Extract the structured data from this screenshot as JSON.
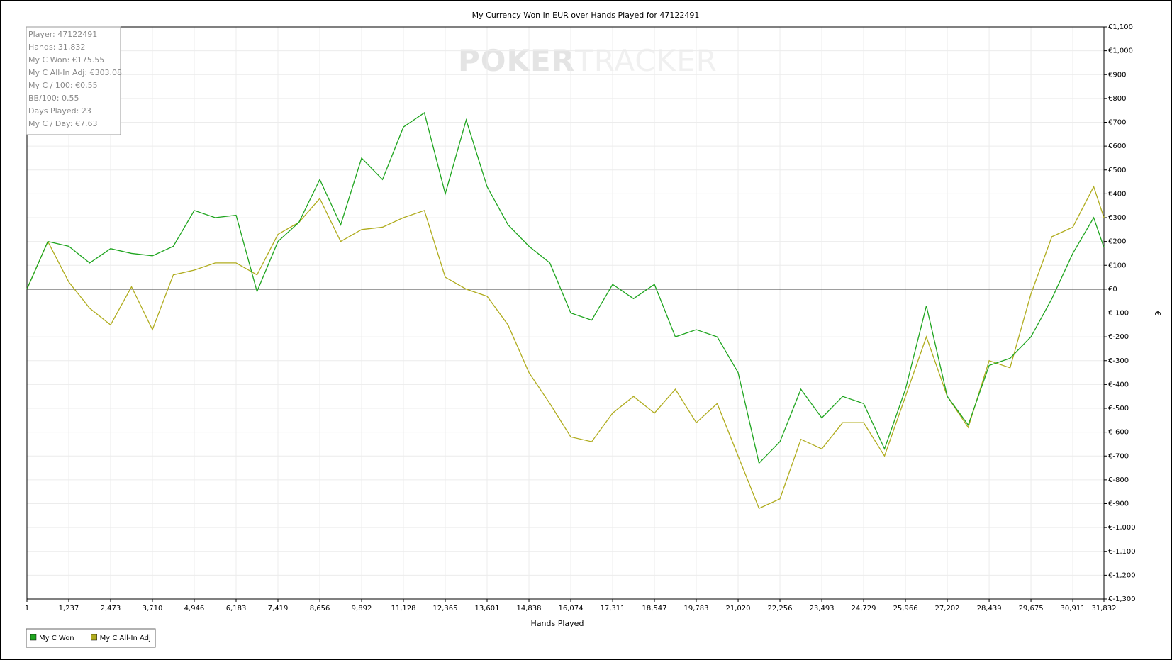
{
  "chart_data": {
    "type": "line",
    "title": "My Currency Won in EUR over Hands Played for 47122491",
    "x_label": "Hands Played",
    "y_label": "€",
    "watermark": {
      "left": "POKER",
      "right": "TRACKER"
    },
    "stats": [
      "Player: 47122491",
      "Hands: 31,832",
      "My C Won: €175.55",
      "My C All-In Adj: €303.08",
      "My C / 100: €0.55",
      "BB/100: 0.55",
      "Days Played: 23",
      "My C / Day: €7.63"
    ],
    "x": [
      1,
      619,
      1237,
      1855,
      2473,
      3092,
      3710,
      4328,
      4946,
      5565,
      6183,
      6801,
      7419,
      8038,
      8656,
      9274,
      9892,
      10510,
      11128,
      11747,
      12365,
      12983,
      13601,
      14220,
      14838,
      15456,
      16074,
      16693,
      17311,
      17929,
      18547,
      19165,
      19783,
      20402,
      21020,
      21638,
      22256,
      22875,
      23493,
      24111,
      24729,
      25347,
      25966,
      26584,
      27202,
      27820,
      28439,
      29057,
      29675,
      30293,
      30911,
      31529,
      31832
    ],
    "series": [
      {
        "name": "My C Won",
        "color": "#1fa51f",
        "values": [
          0,
          200,
          180,
          110,
          170,
          150,
          140,
          180,
          330,
          300,
          310,
          -10,
          200,
          280,
          460,
          270,
          550,
          460,
          680,
          740,
          400,
          710,
          430,
          270,
          180,
          110,
          -100,
          -130,
          20,
          -40,
          20,
          -200,
          -170,
          -200,
          -350,
          -730,
          -640,
          -420,
          -540,
          -450,
          -480,
          -670,
          -420,
          -70,
          -450,
          -570,
          -320,
          -290,
          -200,
          -40,
          150,
          300,
          175
        ]
      },
      {
        "name": "My C All-In Adj",
        "color": "#b0ac1e",
        "values": [
          0,
          200,
          30,
          -80,
          -150,
          10,
          -170,
          60,
          80,
          110,
          110,
          60,
          230,
          280,
          380,
          200,
          250,
          260,
          300,
          330,
          50,
          0,
          -30,
          -150,
          -350,
          -480,
          -620,
          -640,
          -520,
          -450,
          -520,
          -420,
          -560,
          -480,
          -700,
          -920,
          -880,
          -630,
          -670,
          -560,
          -560,
          -700,
          -450,
          -200,
          -450,
          -580,
          -300,
          -330,
          -20,
          220,
          260,
          430,
          300
        ]
      }
    ],
    "xlim": [
      1,
      31832
    ],
    "xticks": [
      1,
      {
        "value": 1237,
        "label": "1,237"
      },
      {
        "value": 2473,
        "label": "2,473"
      },
      {
        "value": 3710,
        "label": "3,710"
      },
      {
        "value": 4946,
        "label": "4,946"
      },
      {
        "value": 6183,
        "label": "6,183"
      },
      {
        "value": 7419,
        "label": "7,419"
      },
      {
        "value": 8656,
        "label": "8,656"
      },
      {
        "value": 9892,
        "label": "9,892"
      },
      {
        "value": 11128,
        "label": "11,128"
      },
      {
        "value": 12365,
        "label": "12,365"
      },
      {
        "value": 13601,
        "label": "13,601"
      },
      {
        "value": 14838,
        "label": "14,838"
      },
      {
        "value": 16074,
        "label": "16,074"
      },
      {
        "value": 17311,
        "label": "17,311"
      },
      {
        "value": 18547,
        "label": "18,547"
      },
      {
        "value": 19783,
        "label": "19,783"
      },
      {
        "value": 21020,
        "label": "21,020"
      },
      {
        "value": 22256,
        "label": "22,256"
      },
      {
        "value": 23493,
        "label": "23,493"
      },
      {
        "value": 24729,
        "label": "24,729"
      },
      {
        "value": 25966,
        "label": "25,966"
      },
      {
        "value": 27202,
        "label": "27,202"
      },
      {
        "value": 28439,
        "label": "28,439"
      },
      {
        "value": 29675,
        "label": "29,675"
      },
      {
        "value": 30911,
        "label": "30,911"
      },
      {
        "value": 31832,
        "label": "31,832"
      }
    ],
    "ylim": [
      -1300,
      1100
    ],
    "yticks": [
      {
        "value": -1300,
        "label": "€-1,300"
      },
      {
        "value": -1200,
        "label": "€-1,200"
      },
      {
        "value": -1100,
        "label": "€-1,100"
      },
      {
        "value": -1000,
        "label": "€-1,000"
      },
      {
        "value": -900,
        "label": "€-900"
      },
      {
        "value": -800,
        "label": "€-800"
      },
      {
        "value": -700,
        "label": "€-700"
      },
      {
        "value": -600,
        "label": "€-600"
      },
      {
        "value": -500,
        "label": "€-500"
      },
      {
        "value": -400,
        "label": "€-400"
      },
      {
        "value": -300,
        "label": "€-300"
      },
      {
        "value": -200,
        "label": "€-200"
      },
      {
        "value": -100,
        "label": "€-100"
      },
      {
        "value": 0,
        "label": "€0"
      },
      {
        "value": 100,
        "label": "€100"
      },
      {
        "value": 200,
        "label": "€200"
      },
      {
        "value": 300,
        "label": "€300"
      },
      {
        "value": 400,
        "label": "€400"
      },
      {
        "value": 500,
        "label": "€500"
      },
      {
        "value": 600,
        "label": "€600"
      },
      {
        "value": 700,
        "label": "€700"
      },
      {
        "value": 800,
        "label": "€800"
      },
      {
        "value": 900,
        "label": "€900"
      },
      {
        "value": 1000,
        "label": "€1,000"
      },
      {
        "value": 1100,
        "label": "€1,100"
      }
    ],
    "grid": true
  }
}
